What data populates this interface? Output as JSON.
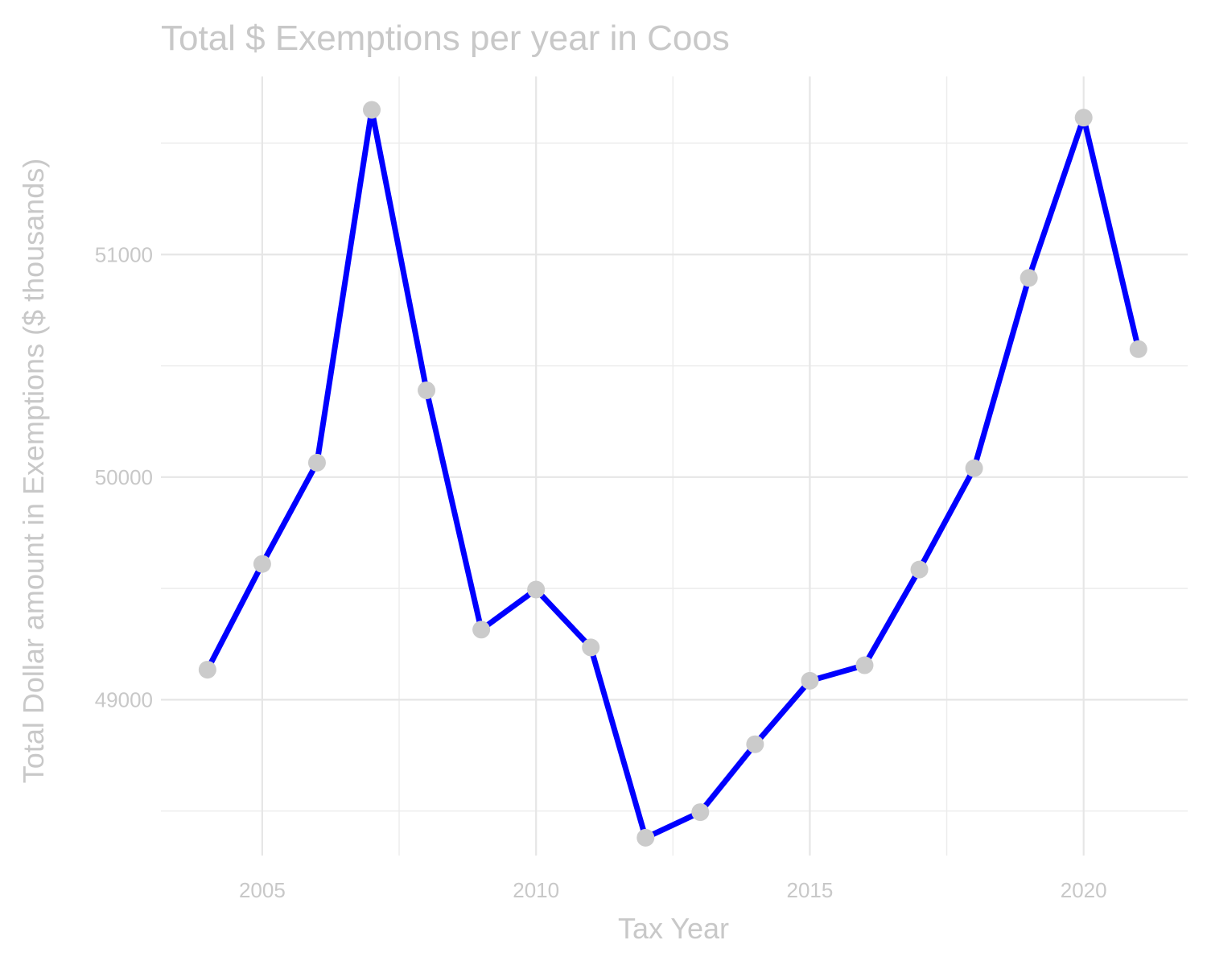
{
  "chart_data": {
    "type": "line",
    "title": "Total $ Exemptions per year in Coos",
    "xlabel": "Tax Year",
    "ylabel": "Total Dollar amount in Exemptions ($ thousands)",
    "x": [
      2004,
      2005,
      2006,
      2007,
      2008,
      2009,
      2010,
      2011,
      2012,
      2013,
      2014,
      2015,
      2016,
      2017,
      2018,
      2019,
      2020,
      2021
    ],
    "series": [
      {
        "values": [
          49135,
          49610,
          50065,
          51650,
          50390,
          49315,
          49495,
          49235,
          48380,
          48495,
          48800,
          49085,
          49155,
          49585,
          50040,
          50895,
          51615,
          50575
        ]
      }
    ],
    "xlim": [
      2003.15,
      2021.9
    ],
    "ylim": [
      48300,
      51800
    ],
    "x_ticks": [
      2005,
      2010,
      2015,
      2020
    ],
    "x_tick_labels": [
      "2005",
      "2010",
      "2015",
      "2020"
    ],
    "y_ticks": [
      49000,
      50000,
      51000
    ],
    "y_tick_labels": [
      "49000",
      "50000",
      "51000"
    ],
    "grid": true,
    "legend": "none",
    "colors": {
      "line": "#0000ff",
      "points": "#cbcbcb",
      "text": "#c8c8c8",
      "grid": "#e6e6e6"
    }
  }
}
